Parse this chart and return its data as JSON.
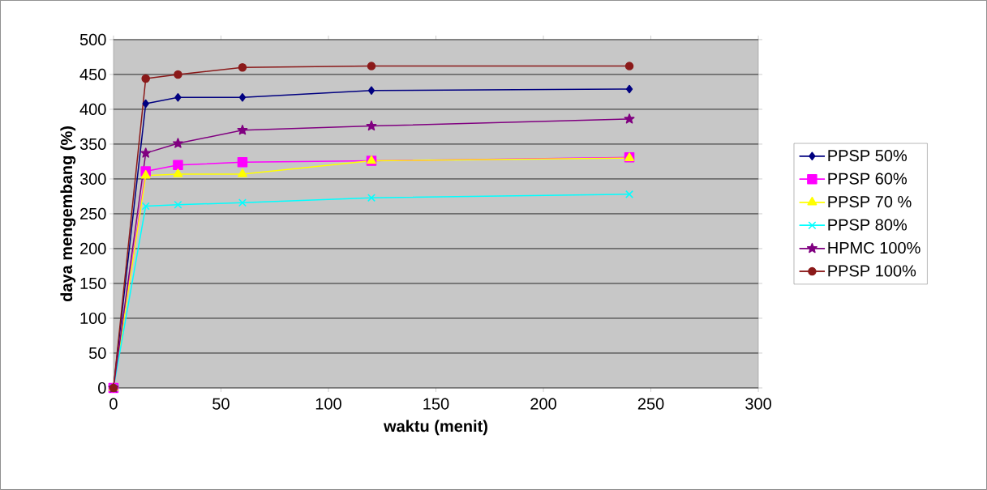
{
  "chart_data": {
    "type": "line",
    "xlabel": "waktu (menit)",
    "ylabel": "daya mengembang (%)",
    "x": [
      0,
      15,
      30,
      60,
      120,
      240
    ],
    "series": [
      {
        "name": "PPSP 50%",
        "color": "#000080",
        "marker": "diamond",
        "values": [
          0,
          408,
          417,
          417,
          427,
          429
        ]
      },
      {
        "name": "PPSP 60%",
        "color": "#ff00ff",
        "marker": "square",
        "values": [
          0,
          311,
          320,
          324,
          326,
          331
        ]
      },
      {
        "name": "PPSP 70 %",
        "color": "#ffff00",
        "marker": "triangle",
        "values": [
          0,
          305,
          307,
          307,
          326,
          330
        ]
      },
      {
        "name": "PPSP 80%",
        "color": "#00ffff",
        "marker": "cross",
        "values": [
          0,
          261,
          263,
          266,
          273,
          278
        ]
      },
      {
        "name": "HPMC 100%",
        "color": "#800080",
        "marker": "star",
        "values": [
          0,
          337,
          351,
          370,
          376,
          386
        ]
      },
      {
        "name": "PPSP 100%",
        "color": "#8b1a1a",
        "marker": "circle",
        "values": [
          0,
          444,
          450,
          460,
          462,
          462
        ]
      }
    ],
    "xlim": [
      0,
      300
    ],
    "xticks": [
      0,
      50,
      100,
      150,
      200,
      250,
      300
    ],
    "ylim": [
      0,
      500
    ],
    "yticks": [
      0,
      50,
      100,
      150,
      200,
      250,
      300,
      350,
      400,
      450,
      500
    ],
    "grid": "y",
    "legend": "right",
    "line_style": "solid"
  }
}
